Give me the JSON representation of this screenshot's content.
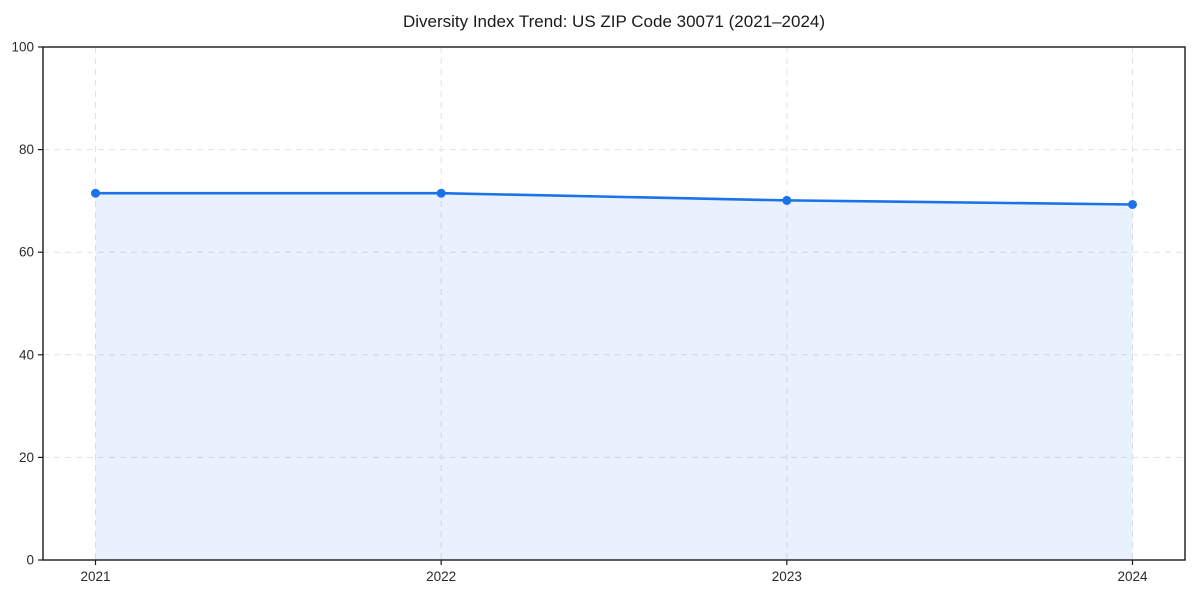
{
  "chart_data": {
    "type": "area",
    "title": "Diversity Index Trend: US ZIP Code 30071 (2021–2024)",
    "categories": [
      "2021",
      "2022",
      "2023",
      "2024"
    ],
    "series": [
      {
        "name": "Diversity Index",
        "values": [
          71.5,
          71.5,
          70.1,
          69.3
        ]
      }
    ],
    "xlabel": "",
    "ylabel": "",
    "ylim": [
      0,
      100
    ],
    "yticks": [
      0,
      20,
      40,
      60,
      80,
      100
    ],
    "grid": "dashed",
    "legend": "none",
    "colors": {
      "line": "#1a73e8",
      "marker": "#1a73e8",
      "area": "#1a73e8",
      "area_opacity": "0.1",
      "grid": "#e2e2e2",
      "axis": "#1a1a1a",
      "tick_text": "#2b2b2b",
      "background": "#ffffff"
    }
  }
}
